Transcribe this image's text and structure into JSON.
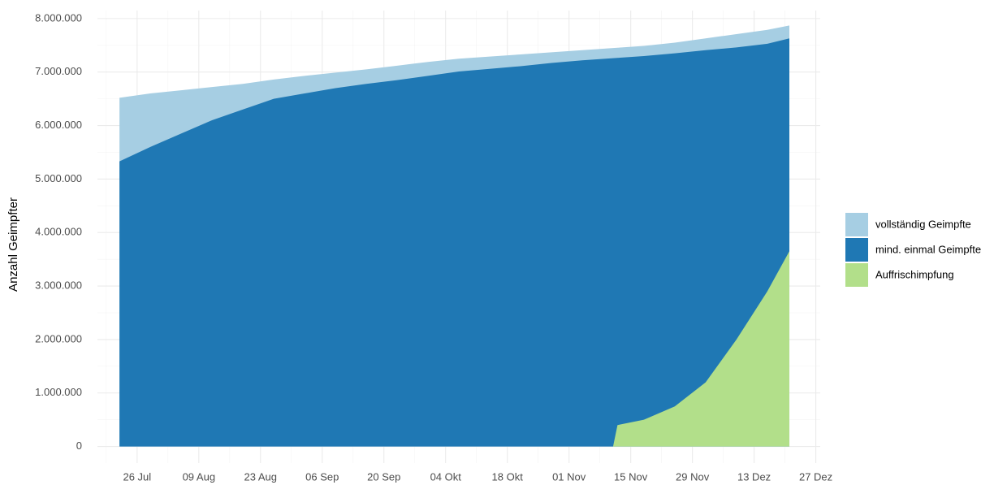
{
  "chart_data": {
    "type": "area",
    "y_label": "Anzahl Geimpfter",
    "x": [
      "22 Jul",
      "29 Jul",
      "5 Aug",
      "12 Aug",
      "19 Aug",
      "26 Aug",
      "2 Sep",
      "9 Sep",
      "16 Sep",
      "23 Sep",
      "30 Sep",
      "7 Okt",
      "14 Okt",
      "21 Okt",
      "28 Okt",
      "4 Nov",
      "11 Nov",
      "12 Nov",
      "18 Nov",
      "25 Nov",
      "2 Dez",
      "9 Dez",
      "16 Dez",
      "21 Dez"
    ],
    "series": [
      {
        "name": "vollständig Geimpfte",
        "color": "#a6cee3",
        "values": [
          6520000,
          6600000,
          6660000,
          6720000,
          6780000,
          6860000,
          6930000,
          6990000,
          7050000,
          7120000,
          7190000,
          7250000,
          7290000,
          7330000,
          7370000,
          7410000,
          7450000,
          7455000,
          7490000,
          7550000,
          7630000,
          7710000,
          7790000,
          7870000
        ]
      },
      {
        "name": "mind. einmal Geimpfte",
        "color": "#1f78b4",
        "values": [
          5330000,
          5600000,
          5850000,
          6100000,
          6300000,
          6500000,
          6600000,
          6700000,
          6780000,
          6850000,
          6930000,
          7010000,
          7060000,
          7110000,
          7170000,
          7220000,
          7260000,
          7265000,
          7300000,
          7350000,
          7410000,
          7460000,
          7530000,
          7630000
        ]
      },
      {
        "name": "Auffrischimpfung",
        "color": "#b2df8a",
        "values": [
          0,
          0,
          0,
          0,
          0,
          0,
          0,
          0,
          0,
          0,
          0,
          0,
          0,
          0,
          0,
          0,
          0,
          400000,
          500000,
          750000,
          1200000,
          2000000,
          2900000,
          3650000
        ]
      }
    ],
    "xlim": [
      "17 Jul",
      "28 Dez"
    ],
    "xticks": [
      "26 Jul",
      "09 Aug",
      "23 Aug",
      "06 Sep",
      "20 Sep",
      "04 Okt",
      "18 Okt",
      "01 Nov",
      "15 Nov",
      "29 Nov",
      "13 Dez",
      "27 Dez"
    ],
    "ylim": [
      -310000,
      8150000
    ],
    "yticks": [
      {
        "value": 0,
        "label": "0"
      },
      {
        "value": 1000000,
        "label": "1.000.000"
      },
      {
        "value": 2000000,
        "label": "2.000.000"
      },
      {
        "value": 3000000,
        "label": "3.000.000"
      },
      {
        "value": 4000000,
        "label": "4.000.000"
      },
      {
        "value": 5000000,
        "label": "5.000.000"
      },
      {
        "value": 6000000,
        "label": "6.000.000"
      },
      {
        "value": 7000000,
        "label": "7.000.000"
      },
      {
        "value": 8000000,
        "label": "8.000.000"
      }
    ],
    "grid": true,
    "legend": "right"
  }
}
